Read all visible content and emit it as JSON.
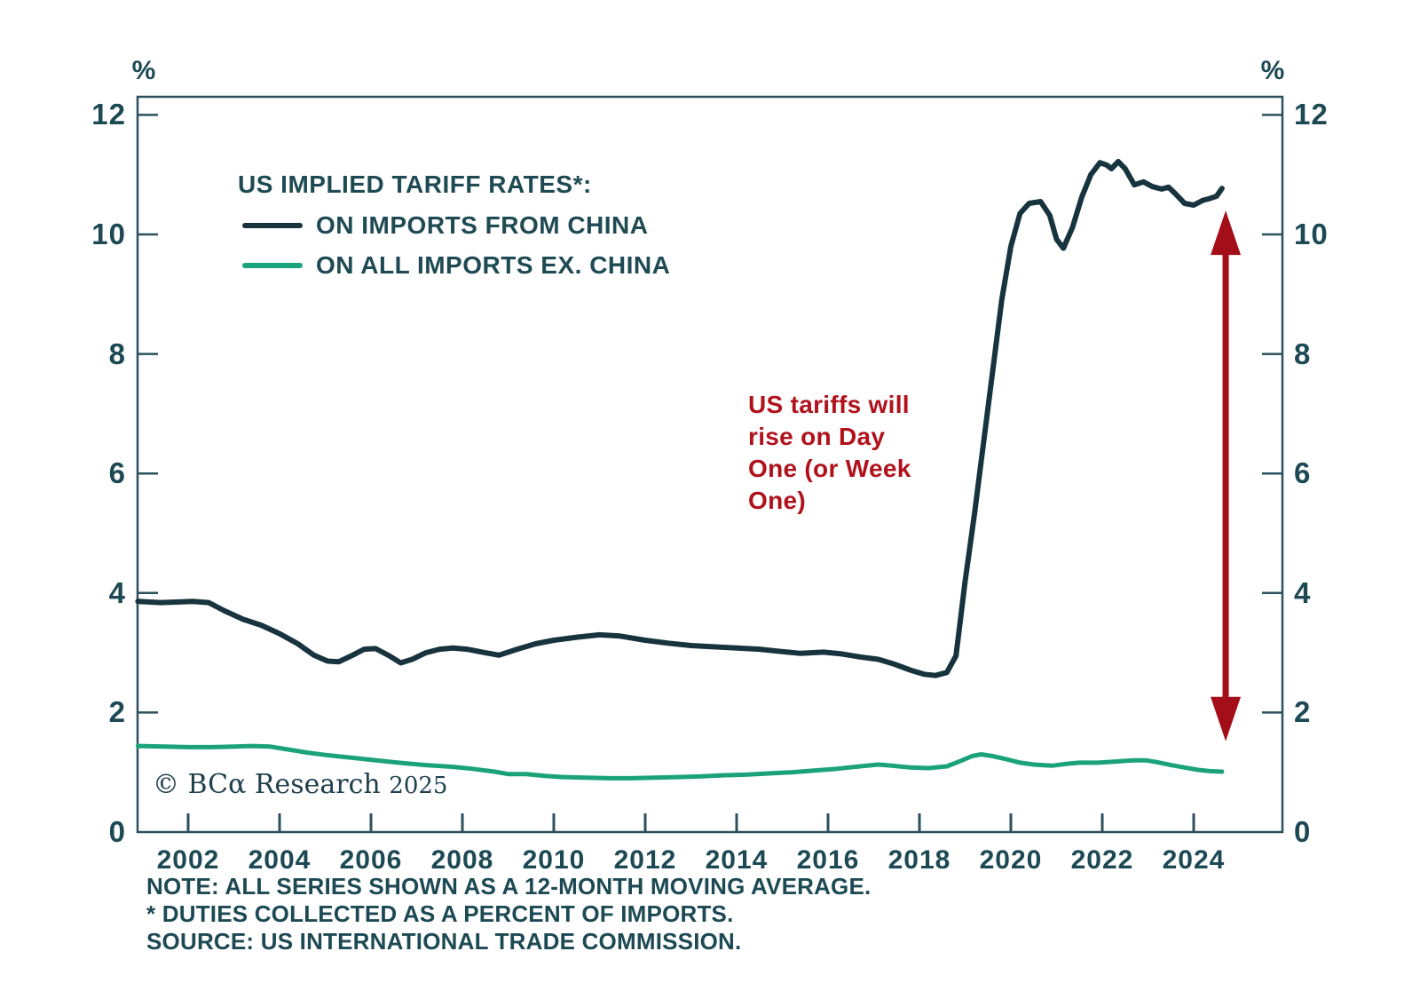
{
  "page": {
    "background": "#ffffff"
  },
  "chart_data": {
    "type": "line",
    "title": "US IMPLIED TARIFF RATES*:",
    "unit": "%",
    "xlabel": "",
    "ylabel": "%",
    "ylim": [
      0,
      12.3
    ],
    "xlim": [
      2000.9,
      2025.9
    ],
    "grid": false,
    "legend_position": "inside-top-left",
    "axis_color": "#2c515c",
    "text_color": "#1c4954",
    "yticks": [
      12,
      10,
      8,
      6,
      4,
      2,
      0
    ],
    "xticks": [
      2002,
      2004,
      2006,
      2008,
      2010,
      2012,
      2014,
      2016,
      2018,
      2020,
      2022,
      2024
    ],
    "series": [
      {
        "name": "ON IMPORTS FROM CHINA",
        "color": "#17333d",
        "points": [
          [
            2000.9,
            3.86
          ],
          [
            2001.4,
            3.84
          ],
          [
            2001.8,
            3.85
          ],
          [
            2002.1,
            3.86
          ],
          [
            2002.45,
            3.84
          ],
          [
            2002.8,
            3.7
          ],
          [
            2003.2,
            3.56
          ],
          [
            2003.6,
            3.46
          ],
          [
            2004.0,
            3.32
          ],
          [
            2004.4,
            3.15
          ],
          [
            2004.75,
            2.96
          ],
          [
            2005.05,
            2.86
          ],
          [
            2005.3,
            2.85
          ],
          [
            2005.6,
            2.96
          ],
          [
            2005.85,
            3.06
          ],
          [
            2006.1,
            3.07
          ],
          [
            2006.4,
            2.95
          ],
          [
            2006.65,
            2.83
          ],
          [
            2006.9,
            2.89
          ],
          [
            2007.2,
            3.0
          ],
          [
            2007.5,
            3.06
          ],
          [
            2007.8,
            3.08
          ],
          [
            2008.1,
            3.06
          ],
          [
            2008.5,
            3.0
          ],
          [
            2008.8,
            2.96
          ],
          [
            2009.2,
            3.06
          ],
          [
            2009.6,
            3.15
          ],
          [
            2010.0,
            3.21
          ],
          [
            2010.5,
            3.26
          ],
          [
            2011.0,
            3.3
          ],
          [
            2011.45,
            3.28
          ],
          [
            2012.0,
            3.21
          ],
          [
            2012.5,
            3.16
          ],
          [
            2013.0,
            3.12
          ],
          [
            2013.5,
            3.1
          ],
          [
            2014.0,
            3.08
          ],
          [
            2014.5,
            3.06
          ],
          [
            2015.0,
            3.02
          ],
          [
            2015.4,
            2.99
          ],
          [
            2015.9,
            3.01
          ],
          [
            2016.3,
            2.98
          ],
          [
            2016.7,
            2.93
          ],
          [
            2017.1,
            2.89
          ],
          [
            2017.45,
            2.81
          ],
          [
            2017.8,
            2.71
          ],
          [
            2018.1,
            2.64
          ],
          [
            2018.35,
            2.62
          ],
          [
            2018.6,
            2.67
          ],
          [
            2018.8,
            2.95
          ],
          [
            2019.0,
            4.2
          ],
          [
            2019.2,
            5.3
          ],
          [
            2019.4,
            6.5
          ],
          [
            2019.6,
            7.7
          ],
          [
            2019.8,
            8.9
          ],
          [
            2020.0,
            9.8
          ],
          [
            2020.2,
            10.35
          ],
          [
            2020.4,
            10.52
          ],
          [
            2020.65,
            10.55
          ],
          [
            2020.85,
            10.32
          ],
          [
            2021.0,
            9.92
          ],
          [
            2021.15,
            9.77
          ],
          [
            2021.35,
            10.12
          ],
          [
            2021.55,
            10.62
          ],
          [
            2021.75,
            11.0
          ],
          [
            2021.95,
            11.2
          ],
          [
            2022.1,
            11.16
          ],
          [
            2022.2,
            11.1
          ],
          [
            2022.35,
            11.22
          ],
          [
            2022.5,
            11.1
          ],
          [
            2022.7,
            10.83
          ],
          [
            2022.9,
            10.88
          ],
          [
            2023.1,
            10.8
          ],
          [
            2023.3,
            10.76
          ],
          [
            2023.45,
            10.79
          ],
          [
            2023.6,
            10.68
          ],
          [
            2023.8,
            10.52
          ],
          [
            2024.0,
            10.49
          ],
          [
            2024.2,
            10.57
          ],
          [
            2024.35,
            10.6
          ],
          [
            2024.5,
            10.64
          ],
          [
            2024.62,
            10.77
          ]
        ]
      },
      {
        "name": "ON ALL IMPORTS EX. CHINA",
        "color": "#1aa27a",
        "points": [
          [
            2000.9,
            1.44
          ],
          [
            2001.5,
            1.43
          ],
          [
            2002.0,
            1.42
          ],
          [
            2002.5,
            1.42
          ],
          [
            2003.0,
            1.43
          ],
          [
            2003.4,
            1.44
          ],
          [
            2003.8,
            1.43
          ],
          [
            2004.2,
            1.38
          ],
          [
            2004.6,
            1.33
          ],
          [
            2005.0,
            1.29
          ],
          [
            2005.5,
            1.25
          ],
          [
            2006.0,
            1.21
          ],
          [
            2006.6,
            1.16
          ],
          [
            2007.2,
            1.12
          ],
          [
            2007.8,
            1.09
          ],
          [
            2008.2,
            1.06
          ],
          [
            2008.7,
            1.01
          ],
          [
            2009.0,
            0.97
          ],
          [
            2009.4,
            0.97
          ],
          [
            2009.8,
            0.94
          ],
          [
            2010.2,
            0.92
          ],
          [
            2010.7,
            0.91
          ],
          [
            2011.2,
            0.9
          ],
          [
            2011.7,
            0.9
          ],
          [
            2012.2,
            0.91
          ],
          [
            2012.7,
            0.92
          ],
          [
            2013.2,
            0.93
          ],
          [
            2013.7,
            0.95
          ],
          [
            2014.2,
            0.96
          ],
          [
            2014.7,
            0.98
          ],
          [
            2015.2,
            1.0
          ],
          [
            2015.7,
            1.03
          ],
          [
            2016.2,
            1.06
          ],
          [
            2016.7,
            1.1
          ],
          [
            2017.1,
            1.13
          ],
          [
            2017.4,
            1.11
          ],
          [
            2017.8,
            1.08
          ],
          [
            2018.2,
            1.07
          ],
          [
            2018.6,
            1.1
          ],
          [
            2018.9,
            1.19
          ],
          [
            2019.15,
            1.27
          ],
          [
            2019.35,
            1.3
          ],
          [
            2019.6,
            1.27
          ],
          [
            2019.9,
            1.22
          ],
          [
            2020.2,
            1.16
          ],
          [
            2020.5,
            1.13
          ],
          [
            2020.9,
            1.11
          ],
          [
            2021.2,
            1.14
          ],
          [
            2021.5,
            1.16
          ],
          [
            2021.9,
            1.16
          ],
          [
            2022.3,
            1.18
          ],
          [
            2022.7,
            1.2
          ],
          [
            2022.95,
            1.2
          ],
          [
            2023.2,
            1.17
          ],
          [
            2023.5,
            1.12
          ],
          [
            2023.8,
            1.08
          ],
          [
            2024.1,
            1.04
          ],
          [
            2024.35,
            1.02
          ],
          [
            2024.62,
            1.01
          ]
        ]
      }
    ],
    "annotation": {
      "lines": [
        "US tariffs will",
        "rise on Day",
        "One (or Week",
        "One)"
      ],
      "color": "#b0121c"
    },
    "arrow": {
      "x_year": 2024.7,
      "from_value": 1.52,
      "to_value": 10.4,
      "color": "#a40e19",
      "style": "double-headed-vertical"
    }
  },
  "footer": {
    "copyright": "© BCα Research",
    "year": "2025",
    "notes": [
      "NOTE: ALL SERIES SHOWN AS A 12-MONTH MOVING AVERAGE.",
      "* DUTIES COLLECTED AS A PERCENT OF IMPORTS.",
      "SOURCE: US INTERNATIONAL TRADE COMMISSION."
    ]
  }
}
